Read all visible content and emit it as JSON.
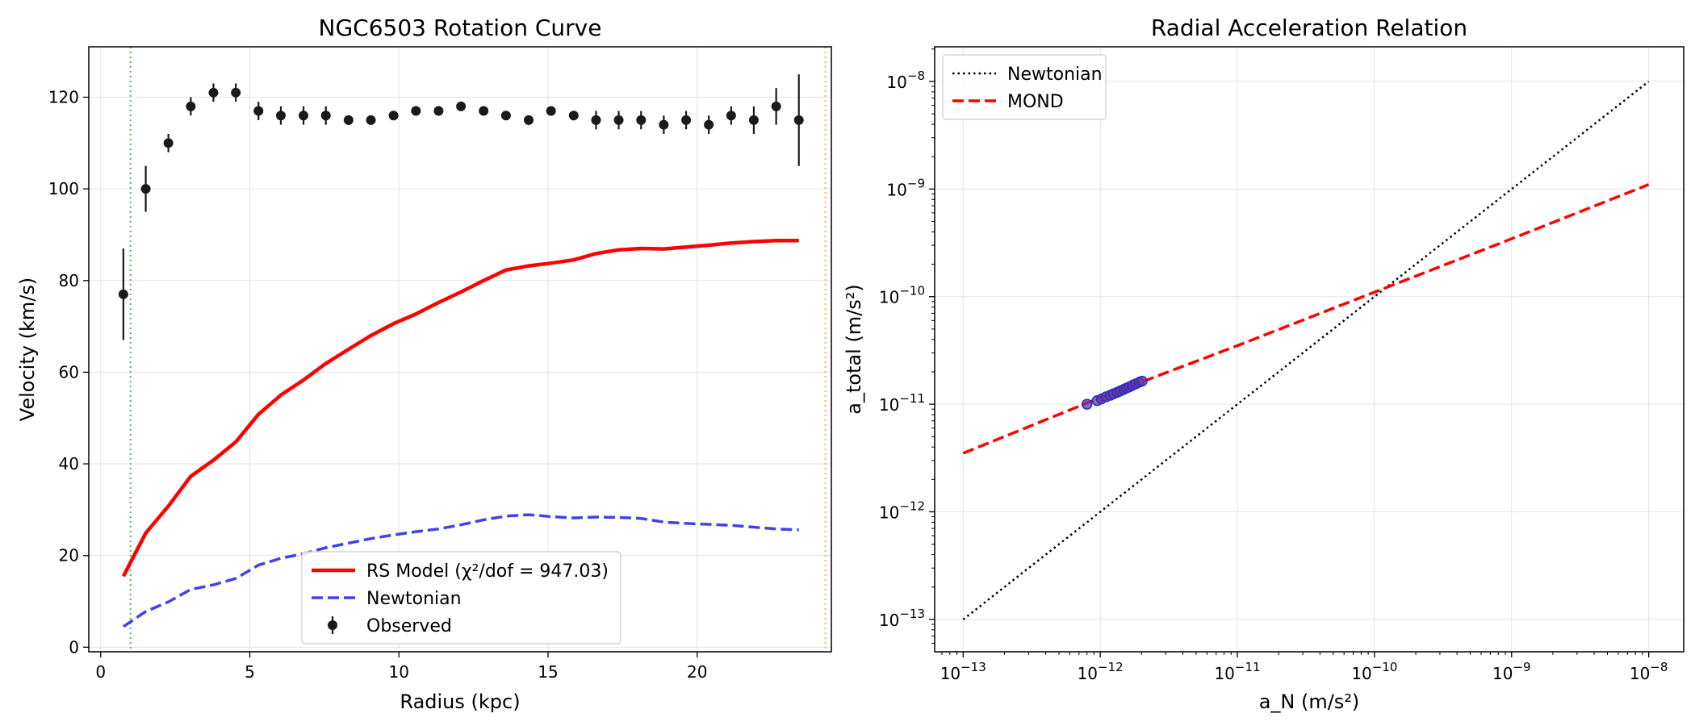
{
  "chart_data": [
    {
      "type": "line",
      "title": "NGC6503 Rotation Curve",
      "xlabel": "Radius (kpc)",
      "ylabel": "Velocity (km/s)",
      "xlim": [
        -0.4,
        24.5
      ],
      "ylim": [
        -1,
        131
      ],
      "xticks": [
        0,
        5,
        10,
        15,
        20
      ],
      "yticks": [
        0,
        20,
        40,
        60,
        80,
        100,
        120
      ],
      "grid": true,
      "legend_position": "bottom-center",
      "vlines": [
        {
          "x": 1.0,
          "color": "#2ca02c",
          "style": "dotted"
        },
        {
          "x": 24.3,
          "color": "#ff9f1c",
          "style": "dotted"
        }
      ],
      "series": [
        {
          "name": "RS Model (χ²/dof = 947.03)",
          "kind": "line",
          "color": "#ff0000",
          "style": "solid",
          "x": [
            0.76,
            1.51,
            2.27,
            3.02,
            3.78,
            4.53,
            5.29,
            6.04,
            6.8,
            7.55,
            8.31,
            9.06,
            9.82,
            10.57,
            11.33,
            12.08,
            12.84,
            13.59,
            14.35,
            15.1,
            15.86,
            16.61,
            17.37,
            18.12,
            18.88,
            19.63,
            20.39,
            21.14,
            21.9,
            22.65,
            23.41
          ],
          "y": [
            15.5,
            24.9,
            30.8,
            37.3,
            40.8,
            44.8,
            50.8,
            55.0,
            58.3,
            61.9,
            65.0,
            68.0,
            70.6,
            72.7,
            75.2,
            77.5,
            80.0,
            82.3,
            83.2,
            83.8,
            84.5,
            85.9,
            86.7,
            87.0,
            86.9,
            87.3,
            87.7,
            88.2,
            88.5,
            88.7,
            88.7
          ]
        },
        {
          "name": "Newtonian",
          "kind": "line",
          "color": "#4040ee",
          "style": "dashed",
          "x": [
            0.76,
            1.51,
            2.27,
            3.02,
            3.78,
            4.53,
            5.29,
            6.04,
            6.8,
            7.55,
            8.31,
            9.06,
            9.82,
            10.57,
            11.33,
            12.08,
            12.84,
            13.59,
            14.35,
            15.1,
            15.86,
            16.61,
            17.37,
            18.12,
            18.88,
            19.63,
            20.39,
            21.14,
            21.9,
            22.65,
            23.41
          ],
          "y": [
            4.5,
            7.8,
            9.9,
            12.6,
            13.6,
            15.0,
            17.9,
            19.4,
            20.4,
            21.7,
            22.7,
            23.7,
            24.5,
            25.2,
            25.8,
            26.7,
            27.8,
            28.6,
            28.9,
            28.5,
            28.2,
            28.4,
            28.3,
            28.1,
            27.3,
            27.0,
            26.8,
            26.6,
            26.2,
            25.8,
            25.6
          ]
        },
        {
          "name": "Observed",
          "kind": "errorbar",
          "color": "#1a1a1a",
          "x": [
            0.76,
            1.51,
            2.27,
            3.02,
            3.78,
            4.53,
            5.29,
            6.04,
            6.8,
            7.55,
            8.31,
            9.06,
            9.82,
            10.57,
            11.33,
            12.08,
            12.84,
            13.59,
            14.35,
            15.1,
            15.86,
            16.61,
            17.37,
            18.12,
            18.88,
            19.63,
            20.39,
            21.14,
            21.9,
            22.65,
            23.41
          ],
          "y": [
            77,
            100,
            110,
            118,
            121,
            121,
            117,
            116,
            116,
            116,
            115,
            115,
            116,
            117,
            117,
            118,
            117,
            116,
            115,
            117,
            116,
            115,
            115,
            115,
            114,
            115,
            114,
            116,
            115,
            118,
            115
          ],
          "yerr": [
            10,
            5,
            2,
            2,
            2,
            2,
            2,
            2,
            2,
            2,
            1,
            1,
            1,
            1,
            1,
            1,
            1,
            1,
            1,
            1,
            1,
            2,
            2,
            2,
            2,
            2,
            2,
            2,
            3,
            4,
            10
          ]
        }
      ]
    },
    {
      "type": "scatter",
      "title": "Radial Acceleration Relation",
      "xlabel": "a_N (m/s²)",
      "ylabel": "a_total (m/s²)",
      "xscale": "log",
      "yscale": "log",
      "xlim": [
        6.2e-14,
        1.8e-08
      ],
      "ylim": [
        5e-14,
        2.1e-08
      ],
      "xticks": [
        1e-13,
        1e-12,
        1e-11,
        1e-10,
        1e-09,
        1e-08
      ],
      "yticks": [
        1e-13,
        1e-12,
        1e-11,
        1e-10,
        1e-09,
        1e-08
      ],
      "tick_mantissa": "10",
      "tick_exponents": [
        "−13",
        "−12",
        "−11",
        "−10",
        "−9",
        "−8"
      ],
      "grid": true,
      "legend_position": "top-left",
      "series": [
        {
          "name": "Newtonian",
          "kind": "line",
          "color": "#000000",
          "style": "dotted",
          "x": [
            1e-13,
            1e-08
          ],
          "y": [
            1e-13,
            1e-08
          ]
        },
        {
          "name": "MOND",
          "kind": "line",
          "color": "#ff0000",
          "style": "dashed",
          "x": [
            1e-13,
            1e-12,
            1e-11,
            1e-10,
            1e-09,
            1e-08
          ],
          "y": [
            3.5e-12,
            1.15e-11,
            3.5e-11,
            1.1e-10,
            3.45e-10,
            1.1e-09
          ]
        },
        {
          "kind": "scatter",
          "color": "#7030a0",
          "edge_color": "#2030c0",
          "x": [
            8e-13,
            9.5e-13,
            1.02e-12,
            1.1e-12,
            1.18e-12,
            1.25e-12,
            1.33e-12,
            1.4e-12,
            1.48e-12,
            1.55e-12,
            1.63e-12,
            1.72e-12,
            1.82e-12,
            1.92e-12,
            2.02e-12
          ],
          "y": [
            1e-11,
            1.08e-11,
            1.12e-11,
            1.17e-11,
            1.21e-11,
            1.25e-11,
            1.29e-11,
            1.33e-11,
            1.37e-11,
            1.41e-11,
            1.45e-11,
            1.5e-11,
            1.55e-11,
            1.6e-11,
            1.64e-11
          ]
        }
      ]
    }
  ]
}
